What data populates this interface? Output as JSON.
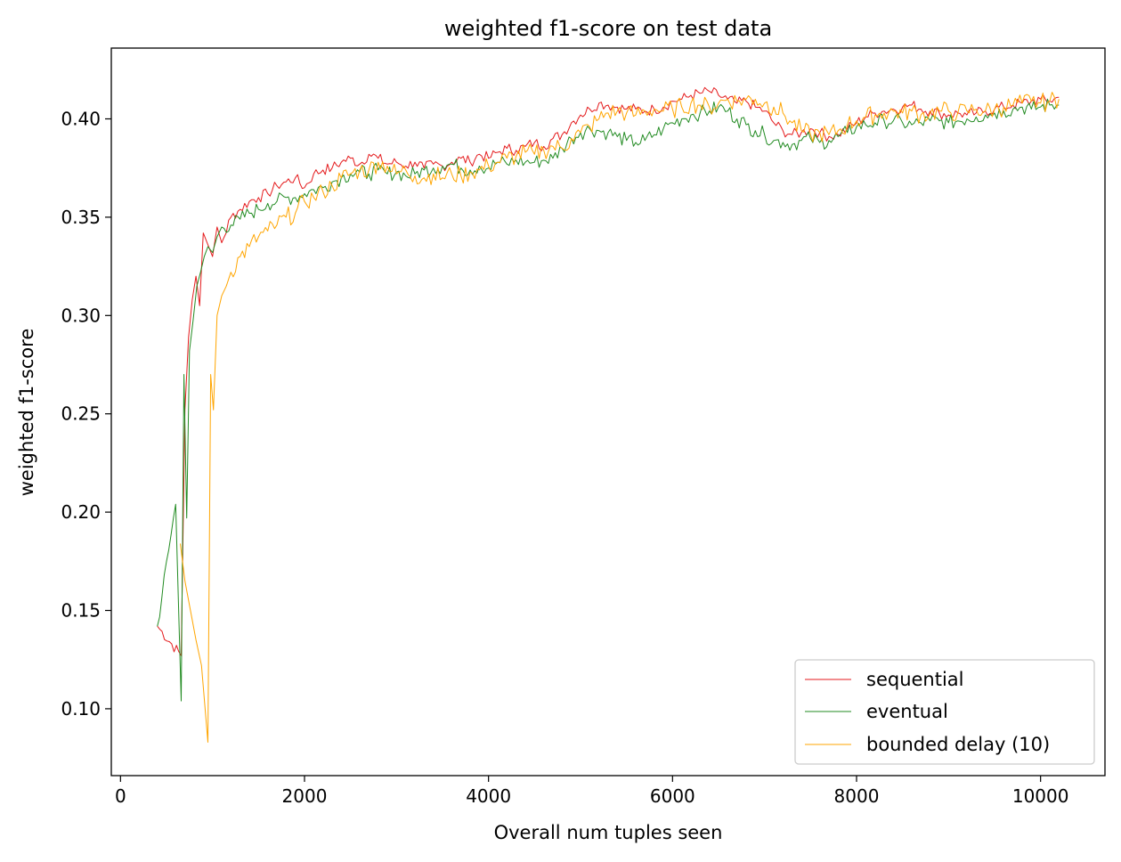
{
  "chart_data": {
    "type": "line",
    "title": "weighted f1-score on test data",
    "xlabel": "Overall num tuples seen",
    "ylabel": "weighted f1-score",
    "xlim": [
      -100,
      10700
    ],
    "ylim": [
      0.066,
      0.436
    ],
    "xticks": [
      0,
      2000,
      4000,
      6000,
      8000,
      10000
    ],
    "xtick_labels": [
      "0",
      "2000",
      "4000",
      "6000",
      "8000",
      "10000"
    ],
    "yticks": [
      0.1,
      0.15,
      0.2,
      0.25,
      0.3,
      0.35,
      0.4
    ],
    "ytick_labels": [
      "0.10",
      "0.15",
      "0.20",
      "0.25",
      "0.30",
      "0.35",
      "0.40"
    ],
    "grid": false,
    "legend": "lower-right",
    "series": [
      {
        "name": "sequential",
        "color": "#e41a1c",
        "x": [
          400,
          660,
          700,
          740,
          780,
          820,
          860,
          900,
          950,
          1000,
          1050,
          1100,
          1200,
          1300,
          1400,
          1500,
          1600,
          1700,
          1800,
          1900,
          2000,
          2100,
          2200,
          2300,
          2400,
          2500,
          2600,
          2700,
          2800,
          2900,
          3000,
          3100,
          3200,
          3300,
          3400,
          3500,
          3600,
          3700,
          3800,
          3900,
          4000,
          4100,
          4200,
          4300,
          4400,
          4500,
          4600,
          4700,
          4800,
          4900,
          5000,
          5100,
          5200,
          5300,
          5400,
          5500,
          5600,
          5700,
          5800,
          5900,
          6000,
          6100,
          6200,
          6300,
          6400,
          6500,
          6600,
          6700,
          6800,
          6900,
          7000,
          7100,
          7200,
          7300,
          7400,
          7500,
          7600,
          7700,
          7800,
          7900,
          8000,
          8100,
          8200,
          8300,
          8400,
          8500,
          8600,
          8700,
          8800,
          8900,
          9000,
          9100,
          9200,
          9300,
          9400,
          9500,
          9600,
          9700,
          9800,
          9900,
          10000,
          10100,
          10200
        ],
        "y": [
          0.142,
          0.127,
          0.252,
          0.289,
          0.308,
          0.32,
          0.305,
          0.342,
          0.336,
          0.33,
          0.345,
          0.337,
          0.35,
          0.354,
          0.358,
          0.36,
          0.362,
          0.366,
          0.368,
          0.37,
          0.365,
          0.372,
          0.374,
          0.375,
          0.378,
          0.38,
          0.377,
          0.382,
          0.38,
          0.377,
          0.378,
          0.376,
          0.378,
          0.375,
          0.377,
          0.376,
          0.378,
          0.38,
          0.378,
          0.382,
          0.38,
          0.383,
          0.385,
          0.384,
          0.386,
          0.388,
          0.386,
          0.39,
          0.392,
          0.398,
          0.402,
          0.405,
          0.408,
          0.407,
          0.406,
          0.405,
          0.405,
          0.404,
          0.405,
          0.406,
          0.409,
          0.41,
          0.412,
          0.413,
          0.414,
          0.412,
          0.41,
          0.408,
          0.409,
          0.406,
          0.404,
          0.398,
          0.394,
          0.392,
          0.393,
          0.395,
          0.393,
          0.391,
          0.392,
          0.395,
          0.398,
          0.401,
          0.403,
          0.404,
          0.405,
          0.406,
          0.407,
          0.405,
          0.404,
          0.403,
          0.402,
          0.403,
          0.402,
          0.403,
          0.404,
          0.405,
          0.406,
          0.407,
          0.408,
          0.409,
          0.41,
          0.409,
          0.411
        ],
        "noise": 0.003
      },
      {
        "name": "eventual",
        "color": "#228b22",
        "x": [
          400,
          600,
          660,
          690,
          720,
          750,
          790,
          830,
          870,
          910,
          950,
          1000,
          1050,
          1100,
          1200,
          1300,
          1400,
          1500,
          1600,
          1700,
          1800,
          1900,
          2000,
          2100,
          2200,
          2300,
          2400,
          2500,
          2600,
          2700,
          2800,
          2900,
          3000,
          3100,
          3200,
          3300,
          3400,
          3500,
          3600,
          3700,
          3800,
          3900,
          4000,
          4100,
          4200,
          4300,
          4400,
          4500,
          4600,
          4700,
          4800,
          4900,
          5000,
          5100,
          5200,
          5300,
          5400,
          5500,
          5600,
          5700,
          5800,
          5900,
          6000,
          6100,
          6200,
          6300,
          6400,
          6500,
          6600,
          6700,
          6800,
          6900,
          7000,
          7100,
          7200,
          7300,
          7400,
          7500,
          7600,
          7700,
          7800,
          7900,
          8000,
          8100,
          8200,
          8300,
          8400,
          8500,
          8600,
          8700,
          8800,
          8900,
          9000,
          9100,
          9200,
          9300,
          9400,
          9500,
          9600,
          9700,
          9800,
          9900,
          10000,
          10100,
          10200
        ],
        "y": [
          0.142,
          0.204,
          0.104,
          0.27,
          0.197,
          0.282,
          0.298,
          0.315,
          0.322,
          0.33,
          0.335,
          0.332,
          0.34,
          0.345,
          0.346,
          0.349,
          0.352,
          0.354,
          0.357,
          0.358,
          0.36,
          0.36,
          0.362,
          0.364,
          0.365,
          0.368,
          0.37,
          0.372,
          0.373,
          0.372,
          0.374,
          0.372,
          0.373,
          0.371,
          0.372,
          0.374,
          0.375,
          0.376,
          0.377,
          0.375,
          0.374,
          0.376,
          0.375,
          0.378,
          0.377,
          0.379,
          0.378,
          0.378,
          0.379,
          0.38,
          0.385,
          0.39,
          0.393,
          0.395,
          0.394,
          0.393,
          0.391,
          0.389,
          0.388,
          0.389,
          0.392,
          0.395,
          0.398,
          0.4,
          0.402,
          0.403,
          0.404,
          0.406,
          0.404,
          0.4,
          0.397,
          0.394,
          0.392,
          0.389,
          0.388,
          0.387,
          0.389,
          0.39,
          0.388,
          0.389,
          0.391,
          0.393,
          0.396,
          0.397,
          0.398,
          0.399,
          0.399,
          0.398,
          0.397,
          0.398,
          0.399,
          0.399,
          0.398,
          0.399,
          0.4,
          0.401,
          0.402,
          0.403,
          0.404,
          0.405,
          0.406,
          0.405,
          0.406,
          0.407,
          0.407
        ],
        "noise": 0.004
      },
      {
        "name": "bounded delay (10)",
        "color": "#ffa500",
        "x": [
          650,
          700,
          760,
          820,
          880,
          950,
          980,
          1010,
          1050,
          1100,
          1150,
          1200,
          1300,
          1400,
          1500,
          1600,
          1700,
          1800,
          1900,
          2000,
          2100,
          2200,
          2300,
          2400,
          2500,
          2600,
          2700,
          2800,
          2900,
          3000,
          3100,
          3200,
          3300,
          3400,
          3500,
          3600,
          3700,
          3800,
          3900,
          4000,
          4100,
          4200,
          4300,
          4400,
          4500,
          4600,
          4700,
          4800,
          4900,
          5000,
          5100,
          5200,
          5300,
          5400,
          5500,
          5600,
          5700,
          5800,
          5900,
          6000,
          6100,
          6200,
          6300,
          6400,
          6500,
          6600,
          6700,
          6800,
          6900,
          7000,
          7100,
          7200,
          7300,
          7400,
          7500,
          7600,
          7700,
          7800,
          7900,
          8000,
          8100,
          8200,
          8300,
          8400,
          8500,
          8600,
          8700,
          8800,
          8900,
          9000,
          9100,
          9200,
          9300,
          9400,
          9500,
          9600,
          9700,
          9800,
          9900,
          10000,
          10100,
          10200
        ],
        "y": [
          0.184,
          0.165,
          0.15,
          0.135,
          0.122,
          0.083,
          0.27,
          0.252,
          0.3,
          0.31,
          0.315,
          0.322,
          0.33,
          0.335,
          0.34,
          0.343,
          0.346,
          0.35,
          0.352,
          0.358,
          0.36,
          0.363,
          0.366,
          0.37,
          0.372,
          0.374,
          0.374,
          0.378,
          0.376,
          0.372,
          0.374,
          0.371,
          0.37,
          0.372,
          0.37,
          0.372,
          0.371,
          0.373,
          0.374,
          0.376,
          0.378,
          0.38,
          0.381,
          0.383,
          0.382,
          0.384,
          0.386,
          0.385,
          0.39,
          0.393,
          0.396,
          0.4,
          0.403,
          0.404,
          0.403,
          0.402,
          0.404,
          0.405,
          0.404,
          0.405,
          0.406,
          0.408,
          0.407,
          0.406,
          0.408,
          0.41,
          0.409,
          0.41,
          0.41,
          0.408,
          0.406,
          0.403,
          0.398,
          0.394,
          0.392,
          0.393,
          0.392,
          0.394,
          0.397,
          0.399,
          0.401,
          0.402,
          0.403,
          0.404,
          0.403,
          0.404,
          0.402,
          0.403,
          0.404,
          0.404,
          0.403,
          0.404,
          0.405,
          0.404,
          0.405,
          0.406,
          0.407,
          0.408,
          0.409,
          0.408,
          0.409,
          0.41
        ],
        "noise": 0.005
      }
    ]
  }
}
